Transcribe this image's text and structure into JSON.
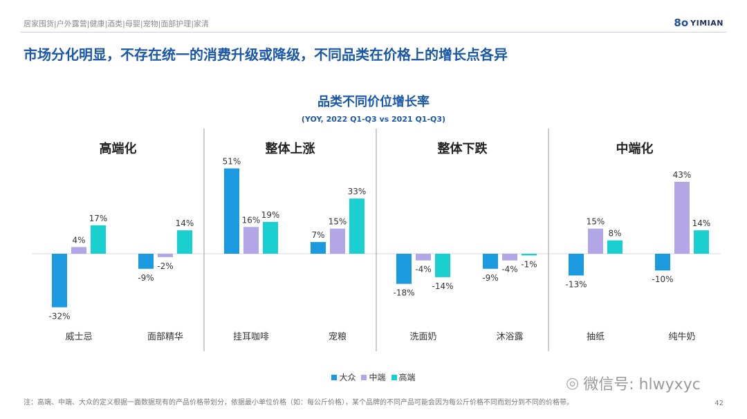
{
  "header": {
    "categories": [
      "居家囤货",
      "户外露营",
      "健康",
      "酒类",
      "母婴",
      "宠物",
      "面部护理",
      "家清"
    ],
    "separator": " | ",
    "logo": {
      "mark": "8o",
      "text": "YIMIAN"
    }
  },
  "headline": "市场分化明显，不存在统一的消费升级或降级，不同品类在价格上的增长点各异",
  "chart_data": {
    "type": "bar",
    "title": "品类不同价位增长率",
    "subtitle": "(YOY, 2022 Q1-Q3 vs 2021 Q1-Q3)",
    "unit": "%",
    "ylim": [
      -35,
      55
    ],
    "groups": [
      {
        "label": "高端化",
        "categories": [
          "威士忌",
          "面部精华"
        ]
      },
      {
        "label": "整体上涨",
        "categories": [
          "挂耳咖啡",
          "宠粮"
        ]
      },
      {
        "label": "整体下跌",
        "categories": [
          "洗面奶",
          "沐浴露"
        ]
      },
      {
        "label": "中端化",
        "categories": [
          "抽纸",
          "纯牛奶"
        ]
      }
    ],
    "categories": [
      "威士忌",
      "面部精华",
      "挂耳咖啡",
      "宠粮",
      "洗面奶",
      "沐浴露",
      "抽纸",
      "纯牛奶"
    ],
    "series": [
      {
        "name": "大众",
        "color": "#1b9ae0",
        "values": [
          -32,
          -9,
          51,
          7,
          -18,
          -9,
          -13,
          -10
        ]
      },
      {
        "name": "中端",
        "color": "#b3a6e6",
        "values": [
          4,
          -2,
          16,
          15,
          -4,
          -4,
          15,
          43
        ]
      },
      {
        "name": "高端",
        "color": "#19cfcf",
        "values": [
          17,
          14,
          19,
          33,
          -14,
          -1,
          8,
          14
        ]
      }
    ],
    "legend_position": "bottom"
  },
  "footnote": "注：高端、中端、大众的定义根据一面数据现有的产品价格带划分，依据最小单位价格（如：每公斤价格），某个品牌的不同产品可能会因为每公斤价格不同而划分到不同的价格带。",
  "page_number": "42",
  "wechat": {
    "icon": "wechat-icon",
    "text": "微信号: hlwyxyc"
  }
}
